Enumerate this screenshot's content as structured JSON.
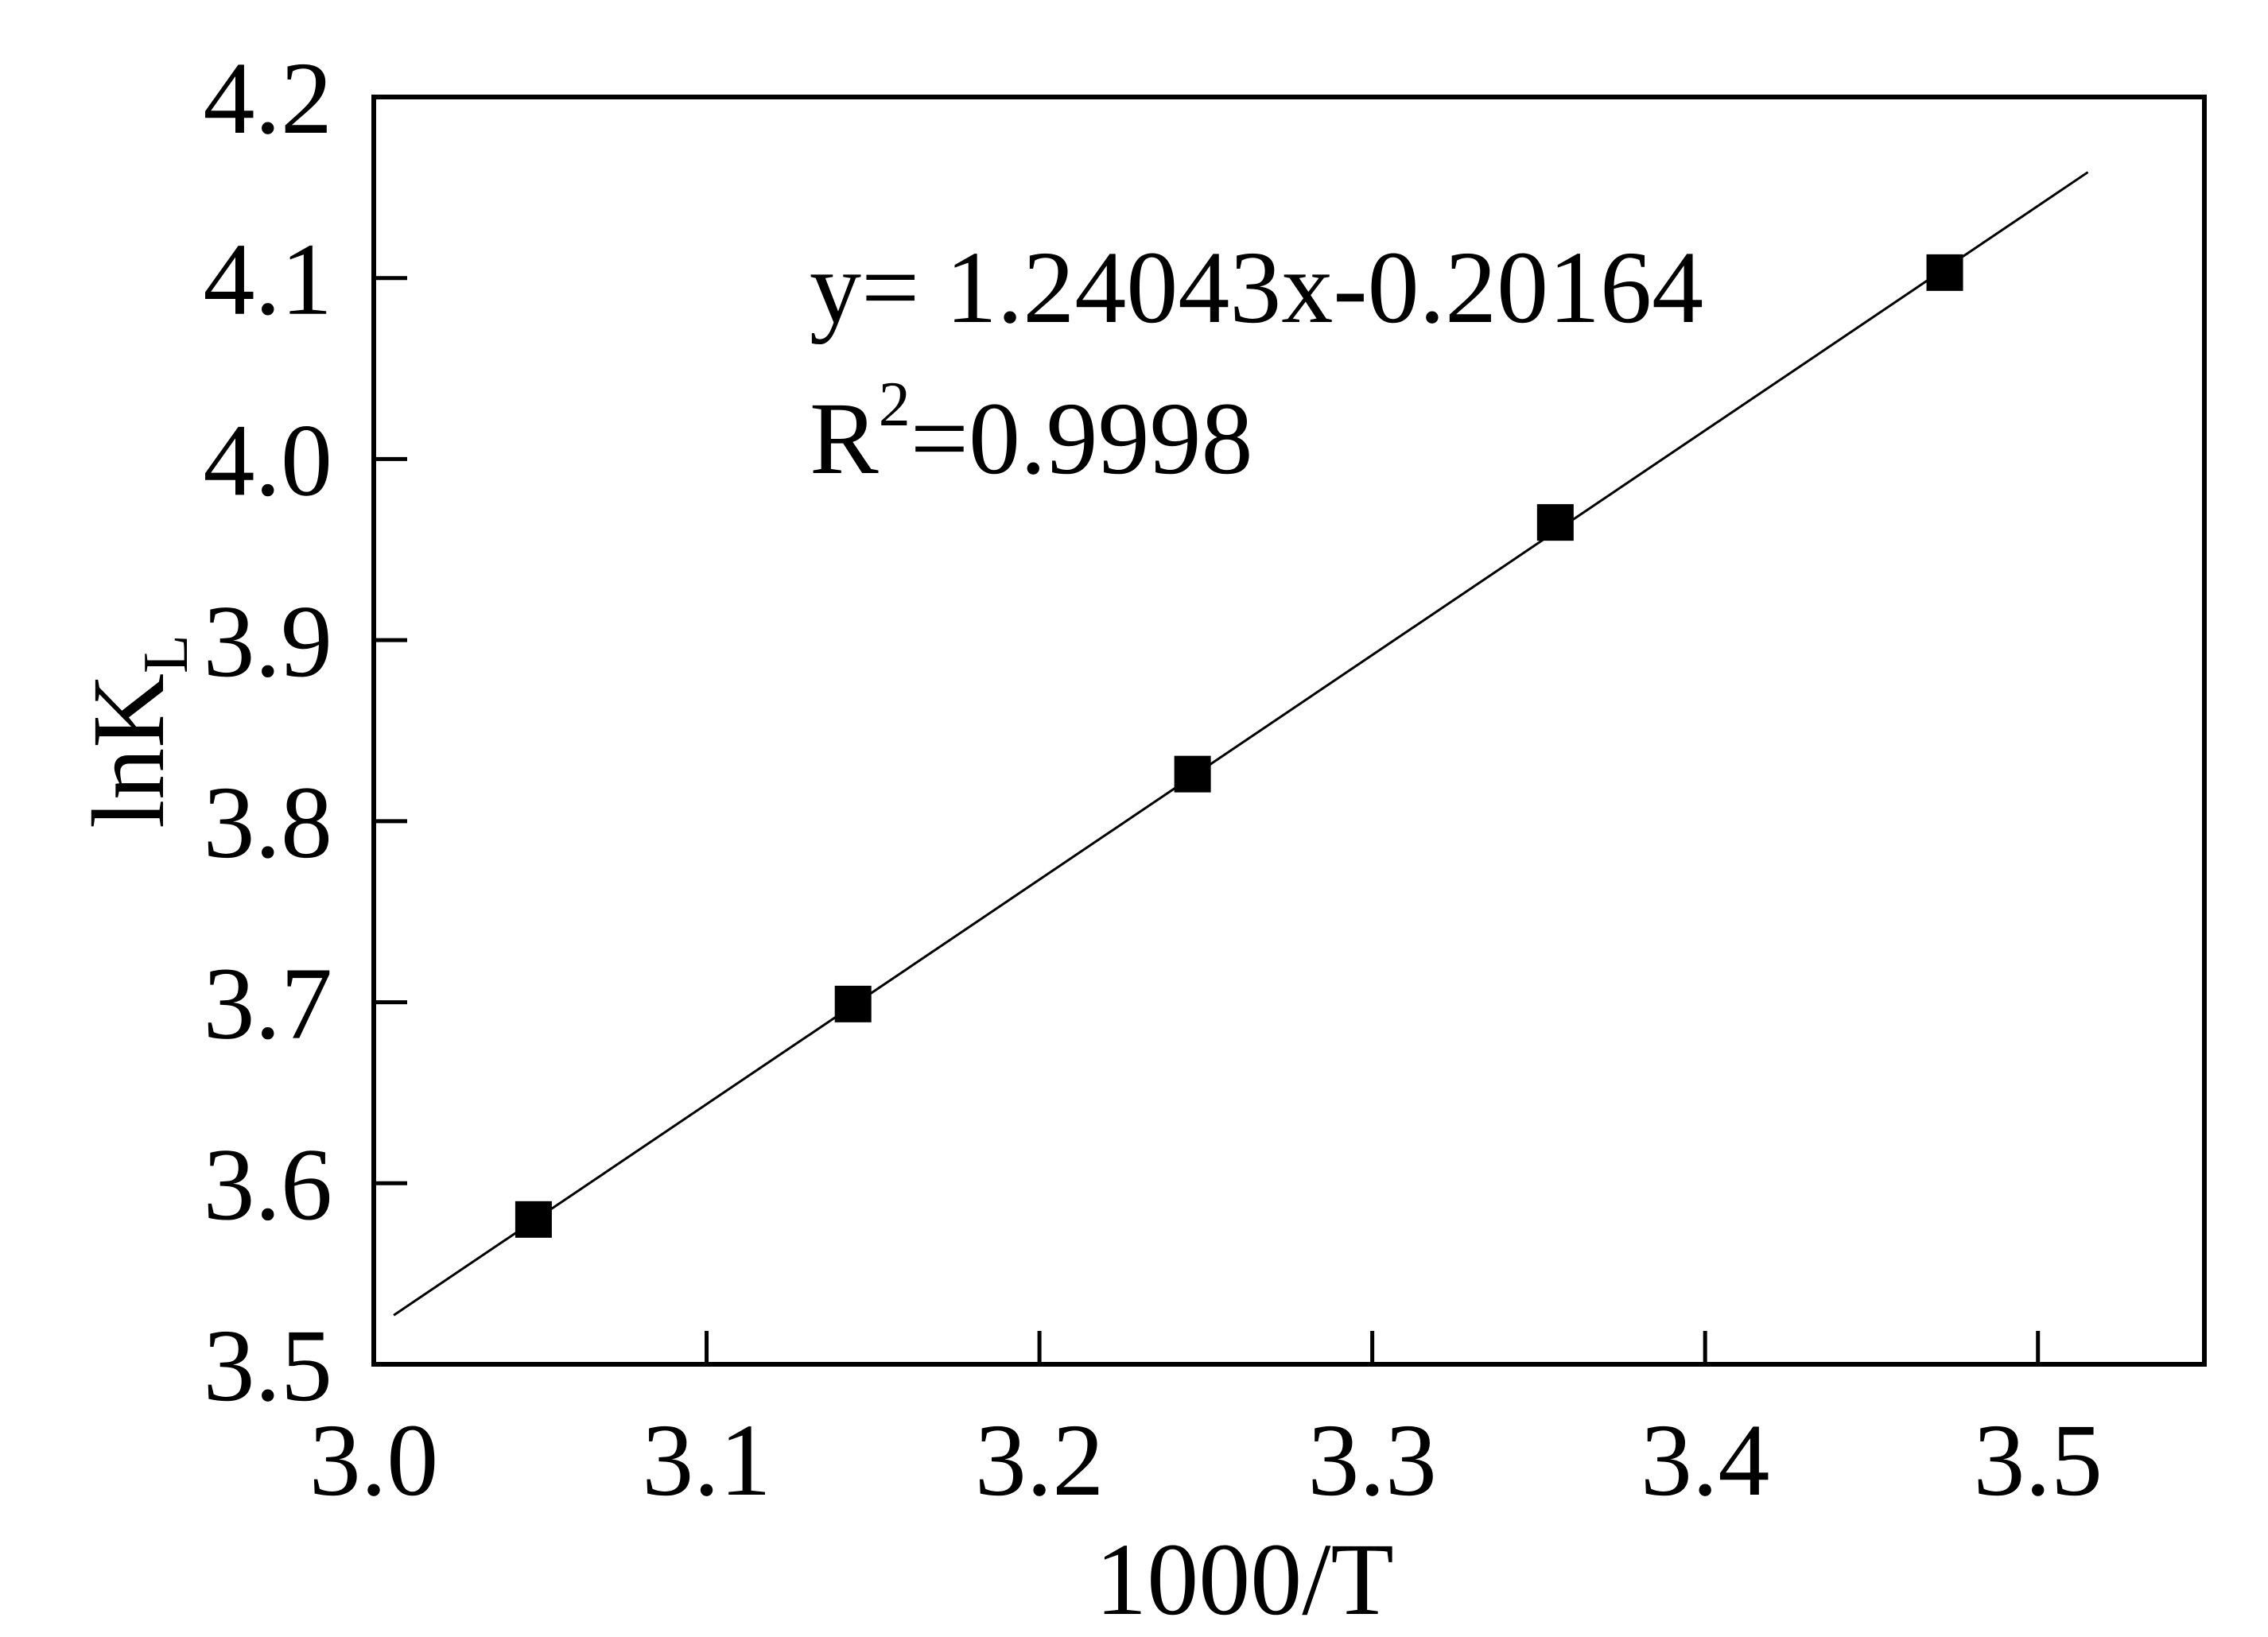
{
  "chart_data": {
    "type": "scatter",
    "xlabel": "1000/T",
    "ylabel": {
      "main": "lnK",
      "sub": "L"
    },
    "xlim": [
      3.0,
      3.55
    ],
    "ylim": [
      3.5,
      4.2
    ],
    "x_ticks": [
      "3.0",
      "3.1",
      "3.2",
      "3.3",
      "3.4",
      "3.5"
    ],
    "y_ticks": [
      "3.5",
      "3.6",
      "3.7",
      "3.8",
      "3.9",
      "4.0",
      "4.1",
      "4.2"
    ],
    "grid": false,
    "series": [
      {
        "marker": "filled-square",
        "color": "#000000",
        "points": [
          {
            "x": 3.048,
            "y": 3.58
          },
          {
            "x": 3.144,
            "y": 3.699
          },
          {
            "x": 3.246,
            "y": 3.826
          },
          {
            "x": 3.355,
            "y": 3.965
          },
          {
            "x": 3.472,
            "y": 4.103
          }
        ]
      }
    ],
    "fit_line": {
      "slope": 1.24043,
      "intercept": -0.20164,
      "x_range": [
        3.006,
        3.515
      ],
      "color": "#000000"
    },
    "annotations": {
      "equation": "y= 1.24043x-0.20164",
      "r2_label": "R",
      "r2_exponent": "2",
      "r2_value": "=0.9998"
    }
  }
}
